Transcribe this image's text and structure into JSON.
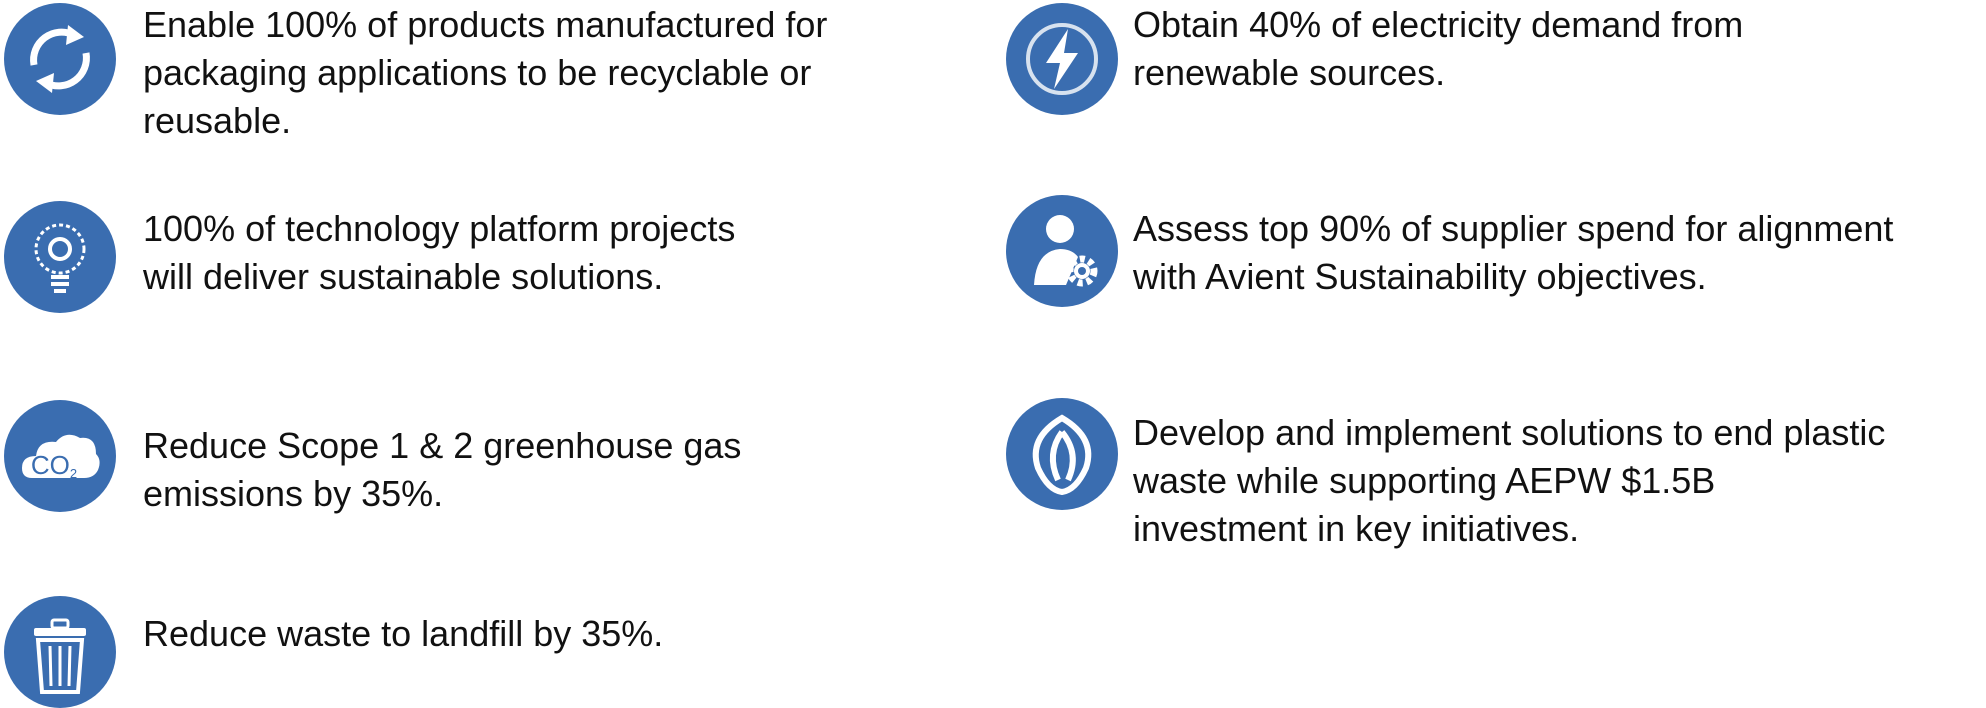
{
  "left": [
    {
      "lines": [
        "Enable 100% of products manufactured for",
        "packaging applications to be recyclable or",
        "reusable."
      ]
    },
    {
      "lines": [
        "100% of technology platform projects",
        "will deliver sustainable solutions."
      ]
    },
    {
      "lines": [
        "Reduce Scope 1 & 2 greenhouse gas",
        "emissions by 35%."
      ],
      "icon_text": [
        "CO",
        "2"
      ]
    },
    {
      "lines": [
        "Reduce waste to landfill by 35%."
      ]
    }
  ],
  "right": [
    {
      "lines": [
        "Obtain 40% of electricity demand from",
        "renewable sources."
      ]
    },
    {
      "lines": [
        "Assess top 90% of supplier spend for alignment",
        "with Avient Sustainability objectives."
      ]
    },
    {
      "lines": [
        "Develop and implement solutions to end plastic",
        "waste while supporting AEPW $1.5B",
        "investment in key initiatives."
      ]
    }
  ]
}
